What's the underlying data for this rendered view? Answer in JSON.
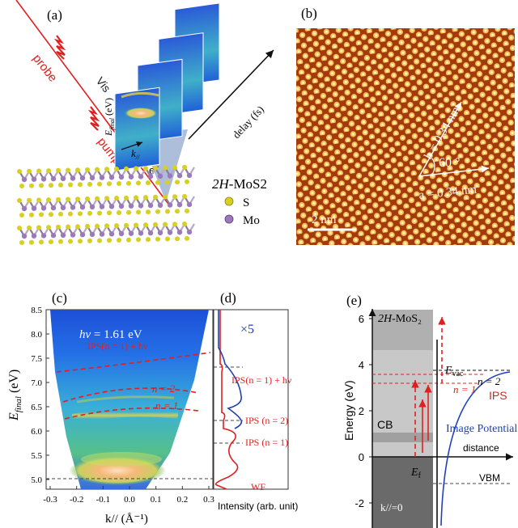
{
  "panel_a": {
    "label": "(a)",
    "probe": "probe",
    "vis": "Vis",
    "pump": "pump",
    "efinal": "E",
    "efinal_sub": "final",
    "efinal_unit": "(eV)",
    "k": "k",
    "k_sub": "//",
    "delay": "delay (fs)",
    "electron": "e",
    "material": "2H-MoS2",
    "legend_s": "S",
    "legend_mo": "Mo",
    "colors": {
      "s_atom": "#d8d020",
      "mo_atom": "#9a7ab8",
      "laser": "#e02020"
    }
  },
  "panel_b": {
    "label": "(b)",
    "b_label": "b = 0.34 nm",
    "angle": "60 °",
    "a_label": "a = 0.34 nm",
    "scale": "2 nm"
  },
  "panel_c": {
    "label": "(c)",
    "hv": "hν = 1.61 eV",
    "ylabel": "E",
    "ylabel_sub": "final",
    "ylabel_unit": "(eV)",
    "xlabel": "k// (Å⁻¹)",
    "ips_hv": "IPS(n = 1) + hν",
    "n2": "n = 2",
    "n1": "n = 1",
    "wf": "WF",
    "yticks": [
      "8.5",
      "8.0",
      "7.5",
      "7.0",
      "6.5",
      "6.0",
      "5.5",
      "5.0"
    ],
    "xticks": [
      "-0.3",
      "-0.2",
      "-0.1",
      "0.0",
      "0.1",
      "0.2",
      "0.3"
    ]
  },
  "panel_d": {
    "label": "(d)",
    "x5": "×5",
    "ips_hv": "IPS(n = 1) + hν",
    "ips2": "IPS (n = 2)",
    "ips1": "IPS (n = 1)",
    "wf": "WF",
    "xlabel": "Intensity (arb. unit)"
  },
  "panel_e": {
    "label": "(e)",
    "material": "2H-MoS₂",
    "ylabel": "Energy (eV)",
    "yticks": [
      "6",
      "4",
      "2",
      "0",
      "-2"
    ],
    "evac": "E",
    "evac_sub": "vac",
    "n2": "n = 2",
    "n1": "n = 1",
    "ips": "IPS",
    "cb": "CB",
    "image_potential": "Image Potential",
    "distance": "distance",
    "ef": "E",
    "ef_sub": "f",
    "vbm": "VBM",
    "k0": "k//=0"
  }
}
